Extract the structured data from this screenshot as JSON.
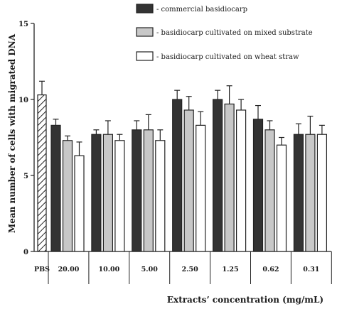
{
  "chart_data": {
    "type": "bar",
    "title": "",
    "ylabel": "Mean number of cells with migrated DNA",
    "xlabel": "Extracts’ concentration (mg/mL)",
    "ylim": [
      0,
      15
    ],
    "yticks": [
      0,
      5,
      10,
      15
    ],
    "grid": false,
    "legend_position": "top-right",
    "control": {
      "label": "PBS",
      "value": 10.3,
      "error": 0.9,
      "pattern": "hatched"
    },
    "categories": [
      "20.00",
      "10.00",
      "5.00",
      "2.50",
      "1.25",
      "0.62",
      "0.31"
    ],
    "series": [
      {
        "name": "- commercial basidiocarp",
        "color": "#333333",
        "values": [
          8.3,
          7.7,
          8.0,
          10.0,
          10.0,
          8.7,
          7.7
        ],
        "errors": [
          0.4,
          0.3,
          0.6,
          0.6,
          0.6,
          0.9,
          0.7
        ]
      },
      {
        "name": "- basidiocarp cultivated on mixed substrate",
        "color": "#c8c8c8",
        "values": [
          7.3,
          7.7,
          8.0,
          9.3,
          9.7,
          8.0,
          7.7
        ],
        "errors": [
          0.3,
          0.9,
          1.0,
          0.9,
          1.2,
          0.6,
          1.2
        ]
      },
      {
        "name": "- basidiocarp cultivated on wheat straw",
        "color": "#ffffff",
        "values": [
          6.3,
          7.3,
          7.3,
          8.3,
          9.3,
          7.0,
          7.7
        ],
        "errors": [
          0.9,
          0.4,
          0.7,
          0.9,
          0.7,
          0.5,
          0.6
        ]
      }
    ]
  }
}
